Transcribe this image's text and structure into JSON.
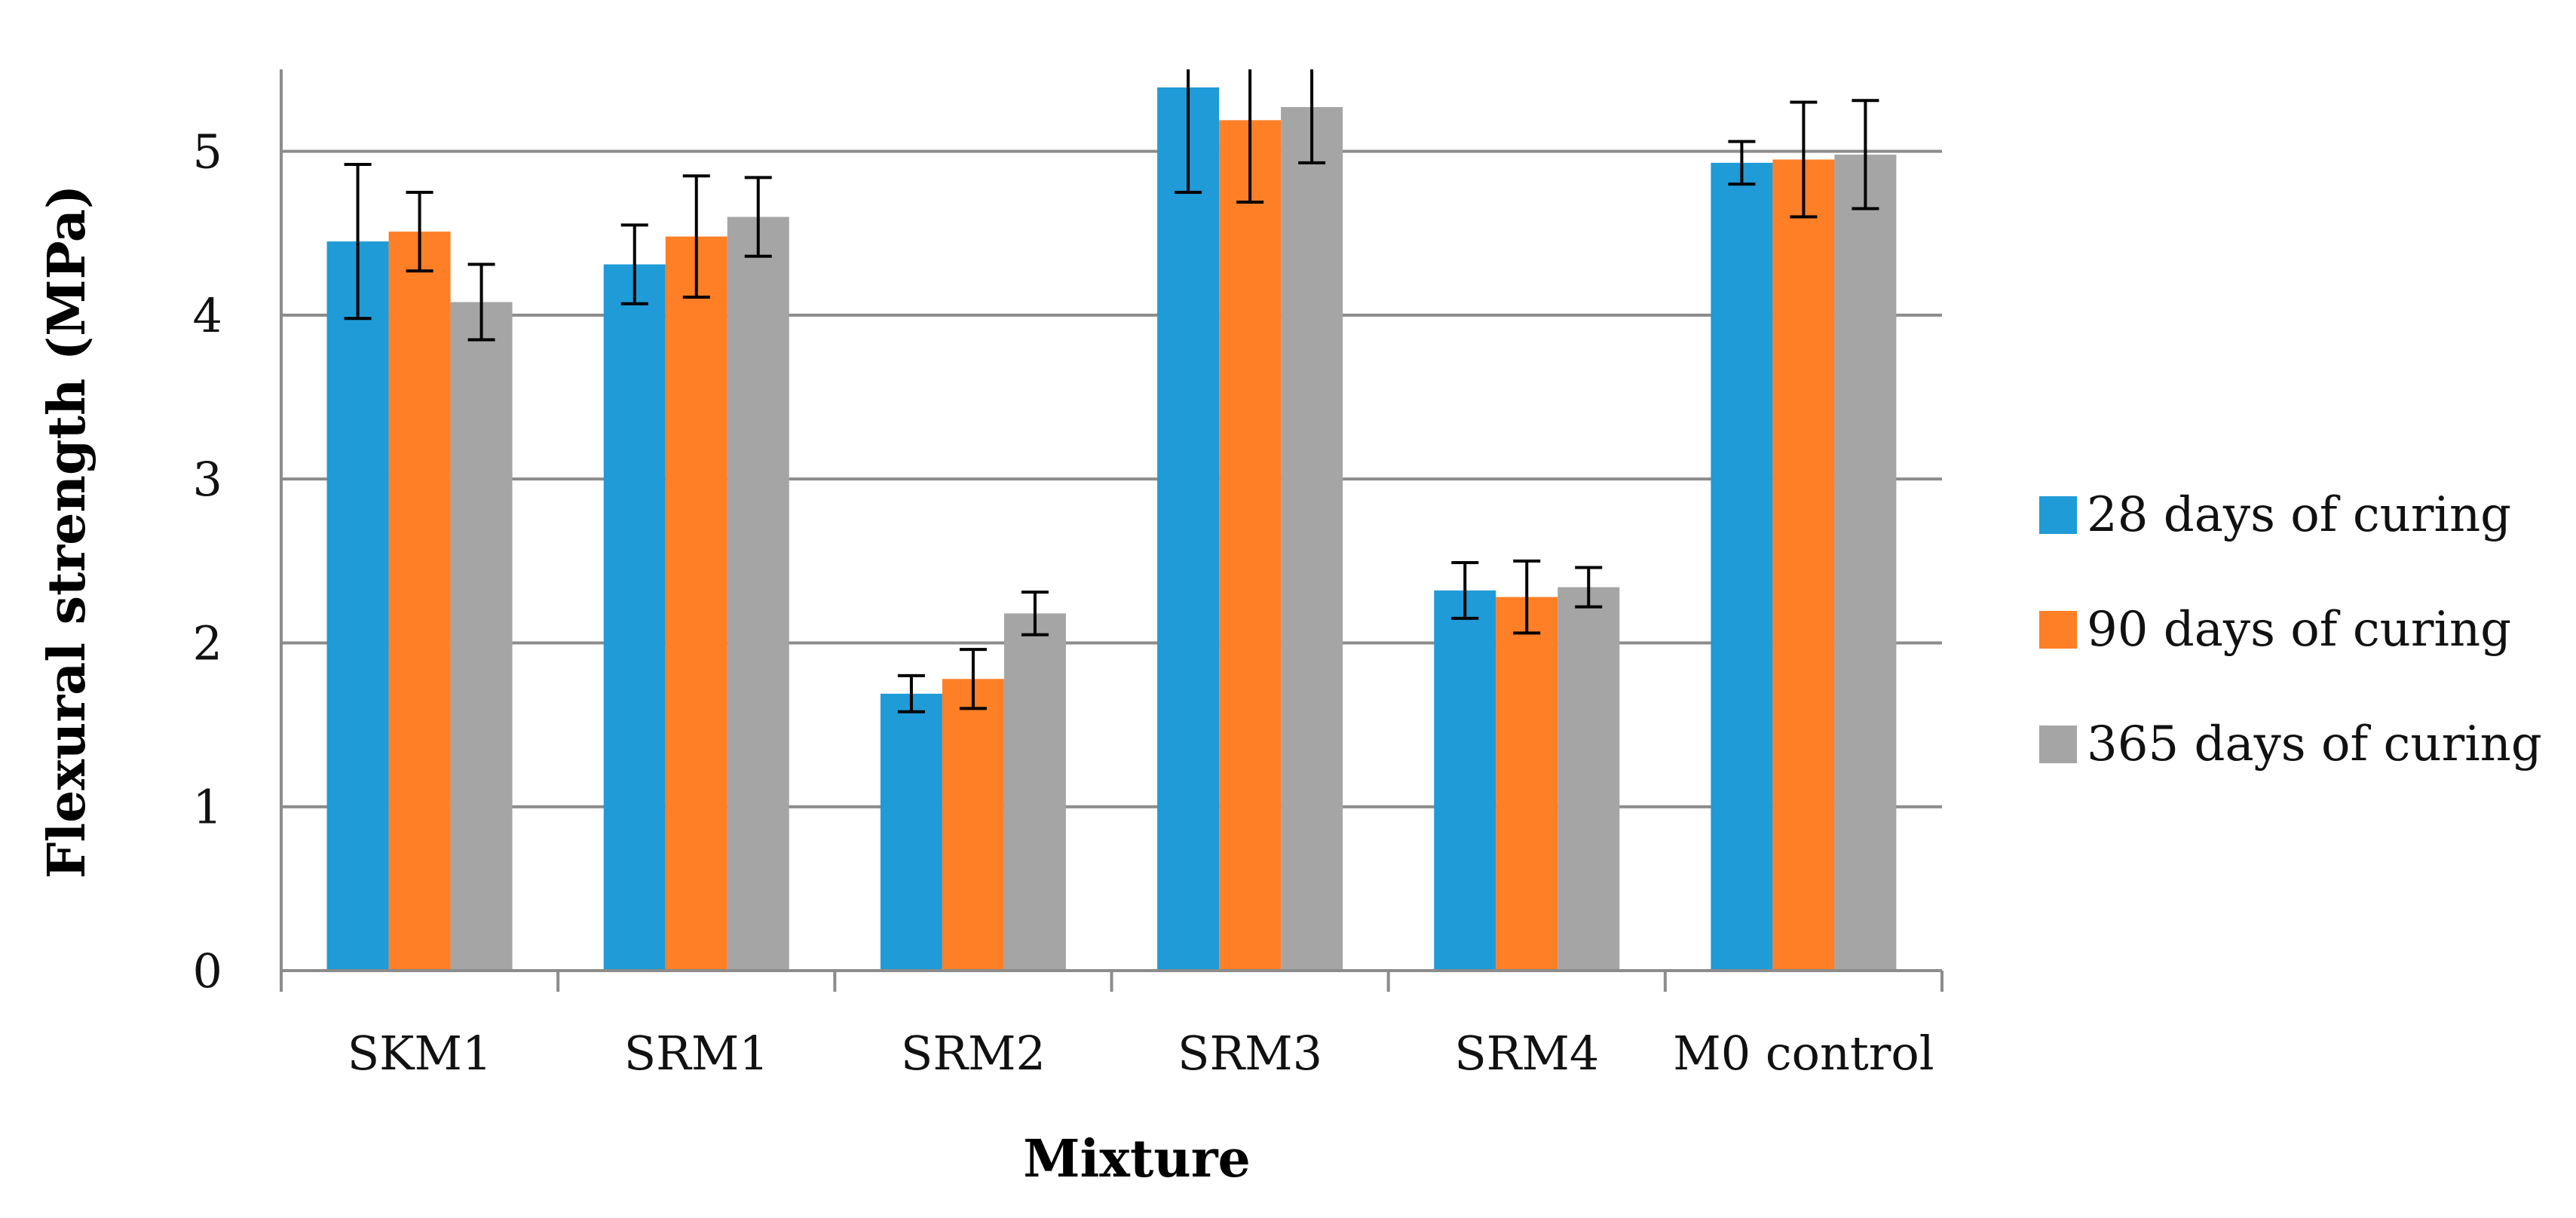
{
  "chart_data": {
    "type": "bar",
    "title": "",
    "xlabel": "Mixture",
    "ylabel": "Flexural strength (MPa)",
    "ylim": [
      0,
      5.5
    ],
    "yticks": [
      0,
      1,
      2,
      3,
      4,
      5
    ],
    "ytick_labels": [
      "0",
      "1",
      "2",
      "3",
      "4",
      "5"
    ],
    "grid": true,
    "legend_position": "right",
    "categories": [
      "SKM1",
      "SRM1",
      "SRM2",
      "SRM3",
      "SRM4",
      "M0 control"
    ],
    "series": [
      {
        "name": "28 days of curing",
        "color": "#1f9bd7",
        "values": [
          4.45,
          4.31,
          1.69,
          5.39,
          2.32,
          4.93
        ],
        "errors": [
          0.47,
          0.24,
          0.11,
          0.64,
          0.17,
          0.13
        ]
      },
      {
        "name": "90 days of curing",
        "color": "#ff7f27",
        "values": [
          4.51,
          4.48,
          1.78,
          5.19,
          2.28,
          4.95
        ],
        "errors": [
          0.24,
          0.37,
          0.18,
          0.5,
          0.22,
          0.35
        ]
      },
      {
        "name": "365 days of curing",
        "color": "#a5a5a5",
        "values": [
          4.08,
          4.6,
          2.18,
          5.27,
          2.34,
          4.98
        ],
        "errors": [
          0.23,
          0.24,
          0.13,
          0.34,
          0.12,
          0.33
        ]
      }
    ]
  }
}
